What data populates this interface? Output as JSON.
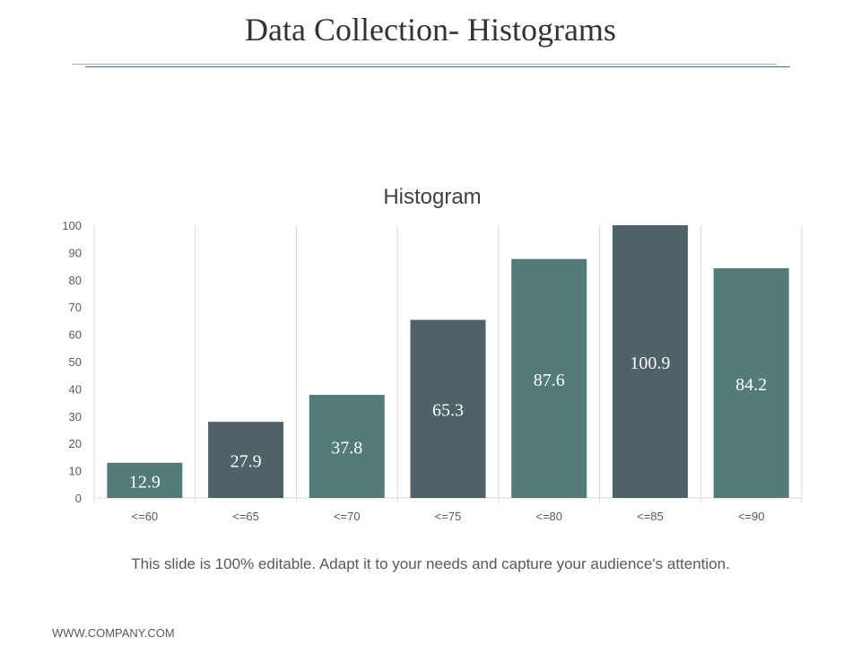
{
  "slide": {
    "title": "Data Collection- Histograms",
    "footnote": "This slide is 100% editable. Adapt it to your needs and capture your audience's attention.",
    "website": "WWW.COMPANY.COM"
  },
  "colors": {
    "bar_teal": "#537b78",
    "bar_slate": "#4f6268",
    "grid": "#d9d9d9",
    "axis_text": "#595959",
    "label_text": "#ffffff"
  },
  "chart_data": {
    "type": "bar",
    "title": "Histogram",
    "categories": [
      "<=60",
      "<=65",
      "<=70",
      "<=75",
      "<=80",
      "<=85",
      "<=90"
    ],
    "values": [
      12.9,
      27.9,
      37.8,
      65.3,
      87.6,
      100.9,
      84.2
    ],
    "data_labels": [
      "12.9",
      "27.9",
      "37.8",
      "65.3",
      "87.6",
      "100.9",
      "84.2"
    ],
    "bar_colors": [
      "#537b78",
      "#4f6268",
      "#537b78",
      "#4f6268",
      "#537b78",
      "#4f6268",
      "#537b78"
    ],
    "ylim": [
      0,
      100
    ],
    "yticks": [
      0,
      10,
      20,
      30,
      40,
      50,
      60,
      70,
      80,
      90,
      100
    ],
    "xlabel": "",
    "ylabel": "",
    "grid": "vertical",
    "legend": "none"
  }
}
